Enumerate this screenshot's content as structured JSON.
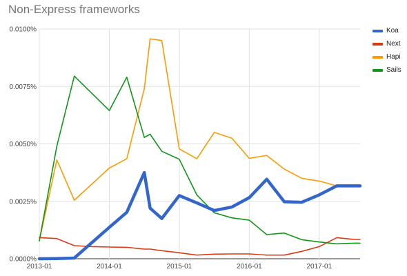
{
  "chart_title": "Non-Express frameworks",
  "chart_data": {
    "type": "line",
    "title": "Non-Express frameworks",
    "xlabel": "",
    "ylabel": "",
    "x": [
      "2013-01",
      "2013-04",
      "2013-07",
      "2013-10",
      "2014-01",
      "2014-04",
      "2014-07",
      "2014-08",
      "2014-10",
      "2015-01",
      "2015-04",
      "2015-07",
      "2015-10",
      "2016-01",
      "2016-04",
      "2016-07",
      "2016-10",
      "2017-01",
      "2017-04",
      "2017-07",
      "2017-08"
    ],
    "x_ticks": [
      "2013-01",
      "2014-01",
      "2015-01",
      "2016-01",
      "2017-01"
    ],
    "y_ticks": [
      "0.0000%",
      "0.0025%",
      "0.0050%",
      "0.0075%",
      "0.0100%"
    ],
    "ylim": [
      0,
      0.01
    ],
    "grid": true,
    "legend_position": "right",
    "series": [
      {
        "name": "Koa",
        "color": "#3366cc",
        "values": [
          0.0,
          1e-05,
          3e-05,
          0.0007,
          0.00137,
          0.00202,
          0.00375,
          0.0022,
          0.00175,
          0.00275,
          0.00243,
          0.0021,
          0.00225,
          0.00266,
          0.00346,
          0.00248,
          0.00246,
          0.00278,
          0.00317,
          0.00317,
          0.00317
        ]
      },
      {
        "name": "Next",
        "color": "#dc3912",
        "values": [
          0.00092,
          0.00088,
          0.00057,
          0.00053,
          0.00051,
          0.0005,
          0.00042,
          0.00042,
          0.00035,
          0.00026,
          0.00016,
          0.0002,
          0.00021,
          0.00021,
          0.00016,
          0.00016,
          0.00032,
          0.00053,
          0.00092,
          0.00084,
          0.00084
        ]
      },
      {
        "name": "Hapi",
        "color": "#ff9900",
        "values": [
          0.00078,
          0.0043,
          0.00255,
          0.00325,
          0.00395,
          0.00435,
          0.0074,
          0.00957,
          0.0095,
          0.00478,
          0.00435,
          0.0055,
          0.00525,
          0.00437,
          0.0045,
          0.0039,
          0.0035,
          0.00338,
          0.00317,
          0.00317,
          0.00317
        ]
      },
      {
        "name": "Sails",
        "color": "#109618",
        "values": [
          0.00078,
          0.0049,
          0.00795,
          0.0072,
          0.00645,
          0.0079,
          0.00528,
          0.00542,
          0.00468,
          0.00433,
          0.00278,
          0.002,
          0.00178,
          0.00168,
          0.00105,
          0.00112,
          0.00083,
          0.00073,
          0.00065,
          0.00068,
          0.00068
        ]
      }
    ]
  }
}
